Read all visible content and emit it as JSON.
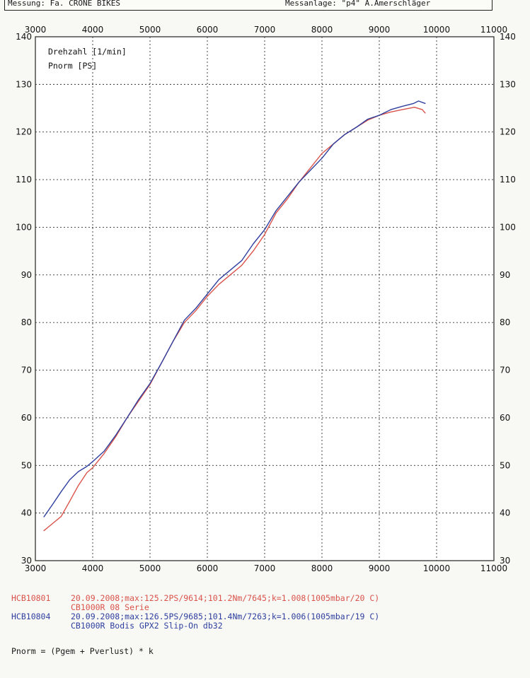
{
  "header": {
    "left": "Messung: Fa. CRONE BIKES",
    "right": "Messanlage: \"p4\" A.Amerschläger"
  },
  "chart_data": {
    "type": "line",
    "xlim": [
      3000,
      11000
    ],
    "ylim": [
      30,
      140
    ],
    "x_ticks": [
      "3000",
      "4000",
      "5000",
      "6000",
      "7000",
      "8000",
      "9000",
      "10000",
      "11000"
    ],
    "y_ticks": [
      "30",
      "40",
      "50",
      "60",
      "70",
      "80",
      "90",
      "100",
      "110",
      "120",
      "130",
      "140"
    ],
    "axis_labels": [
      "Drehzahl [1/min]",
      "Pnorm [PS]"
    ],
    "grid": true,
    "series": [
      {
        "name": "HCB10801",
        "color": "#d9534a",
        "points": [
          [
            3150,
            36.3
          ],
          [
            3300,
            37.8
          ],
          [
            3450,
            39.3
          ],
          [
            3600,
            42.5
          ],
          [
            3750,
            45.8
          ],
          [
            3900,
            48.5
          ],
          [
            4000,
            49.5
          ],
          [
            4200,
            52.5
          ],
          [
            4400,
            56.0
          ],
          [
            4600,
            60.0
          ],
          [
            4800,
            63.5
          ],
          [
            5000,
            67.0
          ],
          [
            5200,
            71.5
          ],
          [
            5400,
            76.0
          ],
          [
            5600,
            80.0
          ],
          [
            5800,
            82.5
          ],
          [
            6000,
            85.5
          ],
          [
            6200,
            88.0
          ],
          [
            6400,
            90.0
          ],
          [
            6600,
            92.0
          ],
          [
            6800,
            95.0
          ],
          [
            7000,
            98.5
          ],
          [
            7200,
            103.0
          ],
          [
            7400,
            106.0
          ],
          [
            7600,
            109.5
          ],
          [
            7800,
            112.5
          ],
          [
            8000,
            115.5
          ],
          [
            8200,
            117.5
          ],
          [
            8400,
            119.5
          ],
          [
            8600,
            121.0
          ],
          [
            8800,
            122.5
          ],
          [
            9000,
            123.5
          ],
          [
            9200,
            124.2
          ],
          [
            9400,
            124.7
          ],
          [
            9614,
            125.2
          ],
          [
            9750,
            124.7
          ],
          [
            9800,
            124.0
          ]
        ]
      },
      {
        "name": "HCB10804",
        "color": "#2e3f9e",
        "points": [
          [
            3150,
            39.2
          ],
          [
            3300,
            41.8
          ],
          [
            3450,
            44.5
          ],
          [
            3600,
            47.0
          ],
          [
            3750,
            48.7
          ],
          [
            3900,
            49.8
          ],
          [
            4000,
            50.8
          ],
          [
            4200,
            53.0
          ],
          [
            4400,
            56.3
          ],
          [
            4600,
            60.0
          ],
          [
            4800,
            63.8
          ],
          [
            5000,
            67.2
          ],
          [
            5200,
            71.5
          ],
          [
            5400,
            76.0
          ],
          [
            5600,
            80.5
          ],
          [
            5800,
            83.0
          ],
          [
            6000,
            86.0
          ],
          [
            6200,
            89.0
          ],
          [
            6400,
            91.0
          ],
          [
            6600,
            93.0
          ],
          [
            6800,
            96.5
          ],
          [
            7000,
            99.5
          ],
          [
            7200,
            103.5
          ],
          [
            7400,
            106.5
          ],
          [
            7600,
            109.5
          ],
          [
            7800,
            112.0
          ],
          [
            8000,
            114.5
          ],
          [
            8200,
            117.5
          ],
          [
            8400,
            119.5
          ],
          [
            8600,
            121.0
          ],
          [
            8800,
            122.7
          ],
          [
            9000,
            123.5
          ],
          [
            9200,
            124.7
          ],
          [
            9400,
            125.4
          ],
          [
            9600,
            126.0
          ],
          [
            9685,
            126.5
          ],
          [
            9800,
            126.0
          ]
        ]
      }
    ]
  },
  "legend": [
    {
      "id": "HCB10801",
      "line": "20.09.2008;max:125.2PS/9614;101.2Nm/7645;k=1.008(1005mbar/20 C)",
      "sub": "CB1000R 08 Serie",
      "color": "#d9534a"
    },
    {
      "id": "HCB10804",
      "line": "20.09.2008;max:126.5PS/9685;101.4Nm/7263;k=1.006(1005mbar/19 C)",
      "sub": "CB1000R Bodis GPX2 Slip-On db32",
      "color": "#2e3f9e"
    }
  ],
  "formula": "Pnorm = (Pgem + Pverlust) * k"
}
